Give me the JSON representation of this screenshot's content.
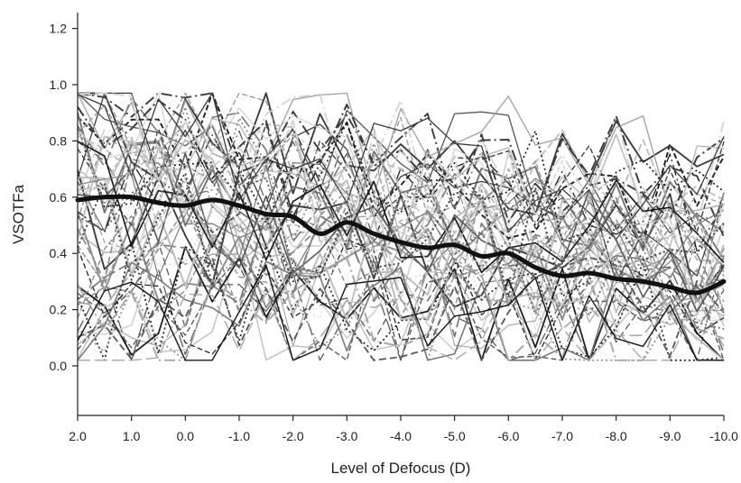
{
  "chart_data": {
    "type": "line",
    "title": "",
    "xlabel": "Level of Defocus (D)",
    "ylabel": "VSOTFa",
    "x_tick_labels": [
      "2.0",
      "1.0",
      "0.0",
      "-1.0",
      "-2.0",
      "-3.0",
      "-4.0",
      "-5.0",
      "-6.0",
      "-7.0",
      "-8.0",
      "-9.0",
      "-10.0"
    ],
    "x_ticks": [
      2,
      1,
      0,
      -1,
      -2,
      -3,
      -4,
      -5,
      -6,
      -7,
      -8,
      -9,
      -10
    ],
    "y_tick_labels": [
      "0.0",
      "0.2",
      "0.4",
      "0.6",
      "0.8",
      "1.0",
      "1.2"
    ],
    "y_ticks": [
      0,
      0.2,
      0.4,
      0.6,
      0.8,
      1.0,
      1.2
    ],
    "xlim": [
      2,
      -10
    ],
    "ylim": [
      -0.2,
      1.25
    ],
    "x_reversed": true,
    "grid": false,
    "x": [
      2,
      1.5,
      1,
      0.5,
      0,
      -0.5,
      -1,
      -1.5,
      -2,
      -2.5,
      -3,
      -3.5,
      -4,
      -4.5,
      -5,
      -5.5,
      -6,
      -6.5,
      -7,
      -7.5,
      -8,
      -8.5,
      -9,
      -9.5,
      -10
    ],
    "mean_series": {
      "values": [
        0.59,
        0.6,
        0.6,
        0.58,
        0.57,
        0.59,
        0.57,
        0.54,
        0.53,
        0.47,
        0.51,
        0.47,
        0.44,
        0.42,
        0.43,
        0.39,
        0.4,
        0.35,
        0.32,
        0.33,
        0.31,
        0.3,
        0.28,
        0.26,
        0.3
      ],
      "color": "#111111"
    },
    "individual_series_count": 60,
    "individual_colors": [
      "#1a1a1a",
      "#3c3c3c",
      "#5a5a5a",
      "#777777",
      "#8f8f8f",
      "#a6a6a6",
      "#bdbdbd",
      "#d2d2d2"
    ]
  }
}
